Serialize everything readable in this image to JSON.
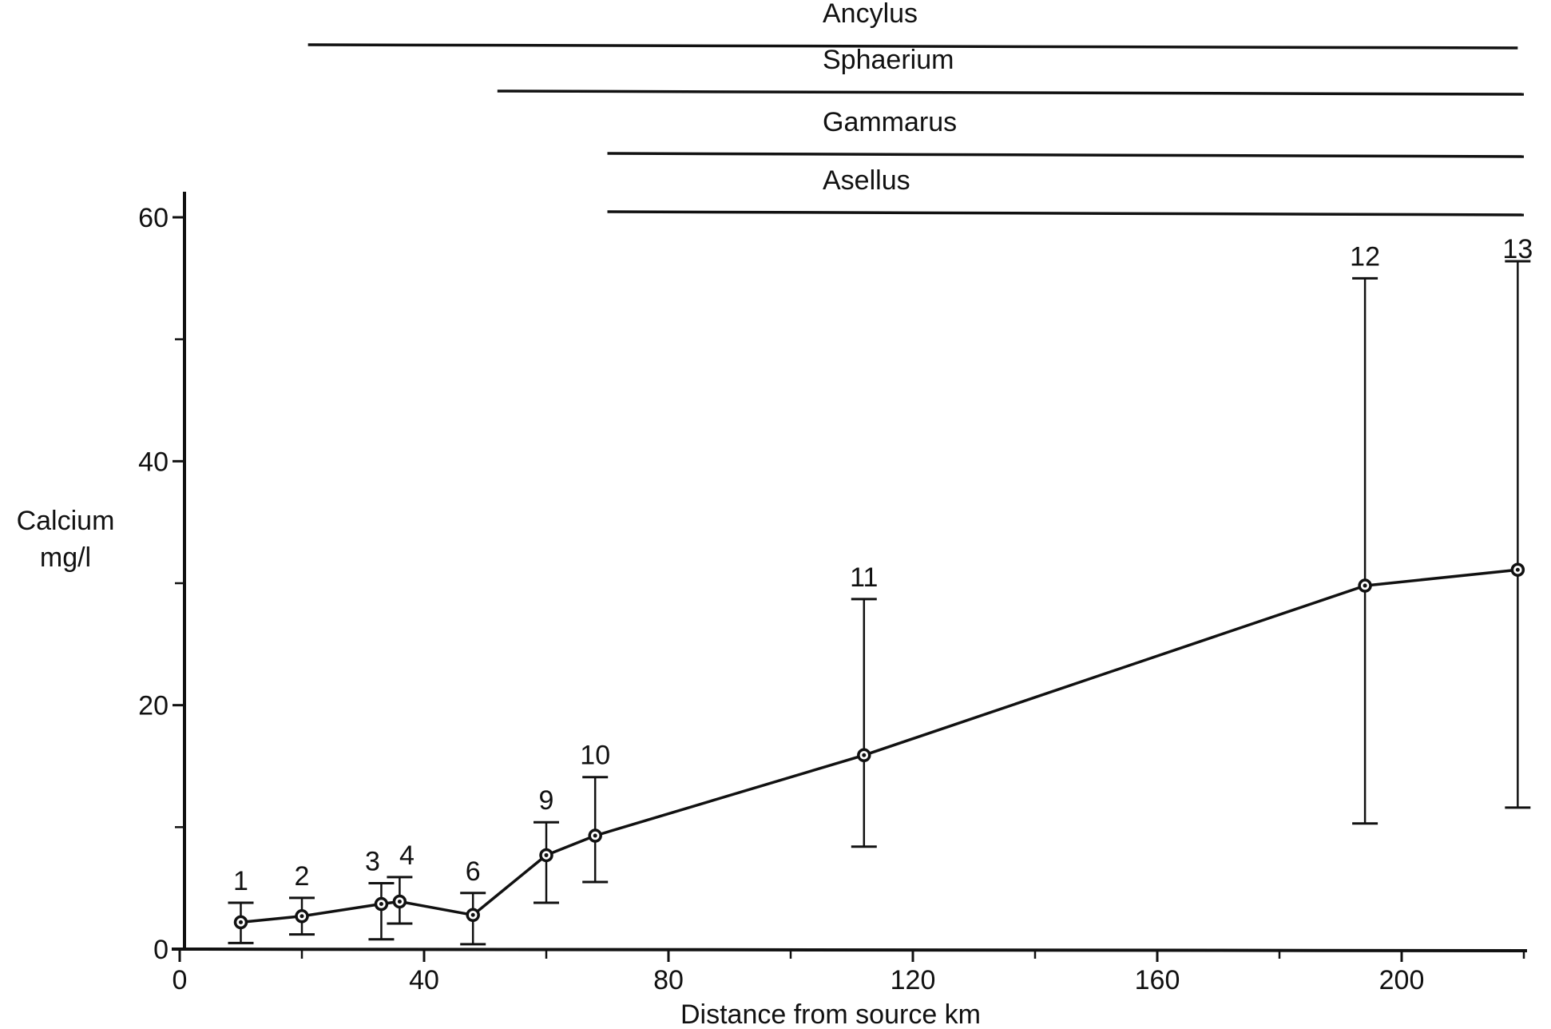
{
  "chart_data": {
    "type": "line",
    "title": "",
    "xlabel": "Distance from source km",
    "ylabel": [
      "Calcium",
      "mg/l"
    ],
    "xlim": [
      0,
      220
    ],
    "ylim": [
      0,
      60
    ],
    "xticks": [
      0,
      40,
      80,
      120,
      160,
      200
    ],
    "yticks": [
      0,
      20,
      40,
      60
    ],
    "grid": false,
    "series": [
      {
        "points": [
          {
            "label": "1",
            "x": 10,
            "y": 2.2,
            "ylow": 0.5,
            "yhigh": 3.8
          },
          {
            "label": "2",
            "x": 20,
            "y": 2.7,
            "ylow": 1.2,
            "yhigh": 4.2
          },
          {
            "label": "3",
            "x": 33,
            "y": 3.7,
            "ylow": 0.8,
            "yhigh": 5.4
          },
          {
            "label": "4",
            "x": 36,
            "y": 3.9,
            "ylow": 2.1,
            "yhigh": 5.9
          },
          {
            "label": "6",
            "x": 48,
            "y": 2.8,
            "ylow": 0.4,
            "yhigh": 4.6
          },
          {
            "label": "9",
            "x": 60,
            "y": 7.7,
            "ylow": 3.8,
            "yhigh": 10.4
          },
          {
            "label": "10",
            "x": 68,
            "y": 9.3,
            "ylow": 5.5,
            "yhigh": 14.1
          },
          {
            "label": "11",
            "x": 112,
            "y": 15.9,
            "ylow": 8.4,
            "yhigh": 28.7
          },
          {
            "label": "12",
            "x": 194,
            "y": 29.8,
            "ylow": 10.3,
            "yhigh": 55.0
          },
          {
            "label": "13",
            "x": 219,
            "y": 31.1,
            "ylow": 11.6,
            "yhigh": 56.4
          }
        ]
      }
    ],
    "taxa_ranges": [
      {
        "name": "Ancylus",
        "x_start": 21,
        "x_end": 219
      },
      {
        "name": "Sphaerium",
        "x_start": 52,
        "x_end": 220
      },
      {
        "name": "Gammarus",
        "x_start": 70,
        "x_end": 220
      },
      {
        "name": "Asellus",
        "x_start": 70,
        "x_end": 220
      }
    ]
  }
}
